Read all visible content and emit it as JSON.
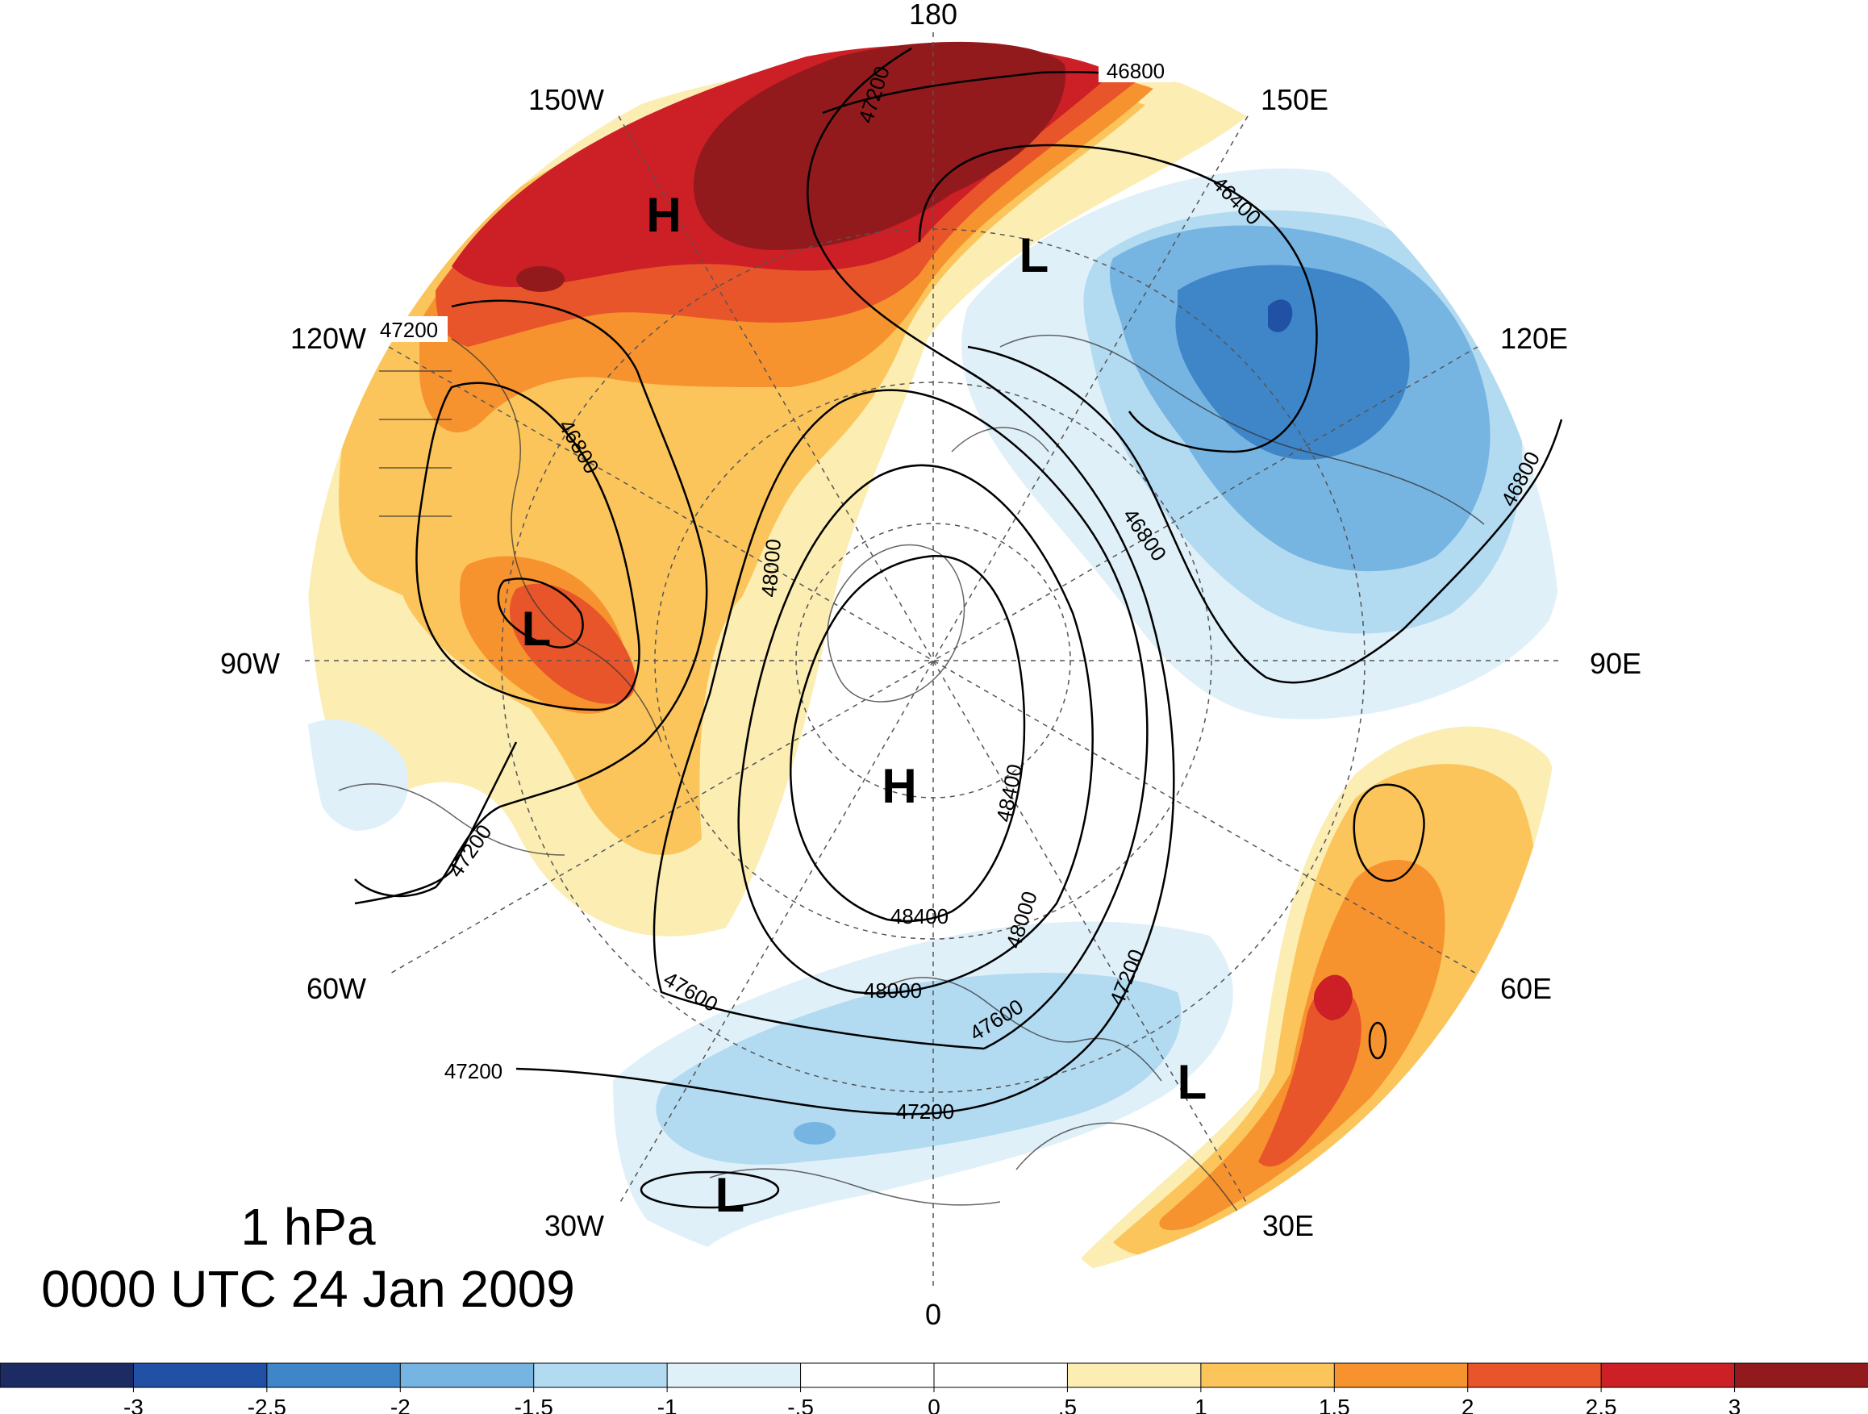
{
  "title": {
    "level": "1 hPa",
    "time": "0000 UTC 24 Jan 2009"
  },
  "longitude_labels": {
    "n180": "180",
    "w150": "150W",
    "e150": "150E",
    "w120": "120W",
    "e120": "120E",
    "w90": "90W",
    "e90": "90E",
    "w60": "60W",
    "e60": "60E",
    "w30": "30W",
    "e30": "30E",
    "s0": "0"
  },
  "pressure_centers": [
    {
      "id": "h-pacific",
      "label": "H"
    },
    {
      "id": "l-siberia",
      "label": "L"
    },
    {
      "id": "l-canada",
      "label": "L"
    },
    {
      "id": "h-pole",
      "label": "H"
    },
    {
      "id": "l-europe",
      "label": "L"
    },
    {
      "id": "l-atlantic",
      "label": "L"
    }
  ],
  "contour_labels": {
    "c46800_top": "46800",
    "c47200_top": "47200",
    "c46400": "46400",
    "c47200_120w": "47200",
    "c46800_can": "46800",
    "c46800_asia": "46800",
    "c46800_east": "46800",
    "c48000_a": "48000",
    "c48400_a": "48400",
    "c48400_b": "48400",
    "c48000_b": "48000",
    "c47200_pac": "47200",
    "c47600_a": "47600",
    "c48000_c": "48000",
    "c47600_b": "47600",
    "c47200_eu": "47200",
    "c47200_atl": "47200",
    "c47200_mid": "47200"
  },
  "colorbar": {
    "ticks": [
      "-3",
      "-2.5",
      "-2",
      "-1.5",
      "-1",
      "-.5",
      "0",
      ".5",
      "1",
      "1.5",
      "2",
      "2.5",
      "3"
    ],
    "colors": [
      "#1c2c63",
      "#2151a4",
      "#3f86c9",
      "#76b4e2",
      "#b2daf1",
      "#e0f0f9",
      "#ffffff",
      "#ffffff",
      "#fcedb3",
      "#fbc55c",
      "#f7932f",
      "#e8552a",
      "#cc1f26",
      "#921a1c"
    ]
  },
  "colors": {
    "contour": "#000000",
    "gridline": "#555555",
    "coastline": "#333333"
  }
}
